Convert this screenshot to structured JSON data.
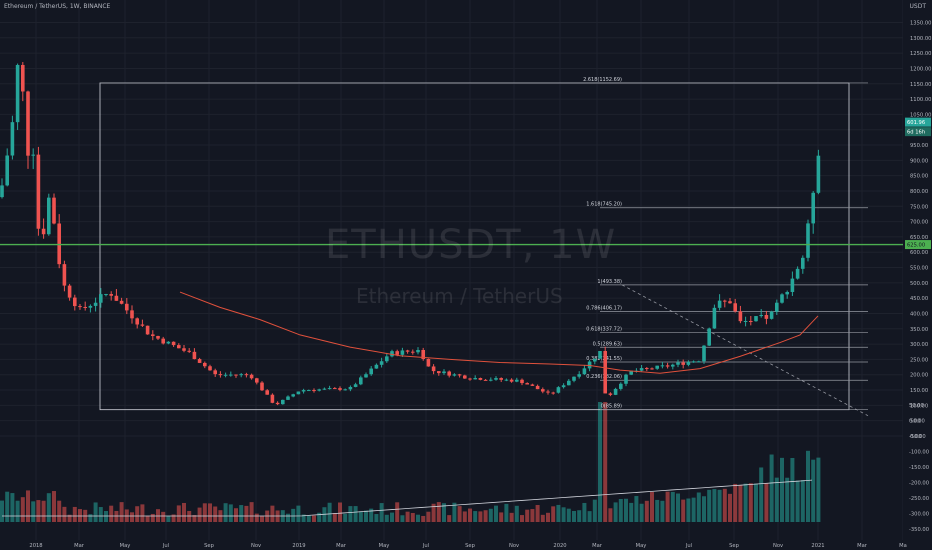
{
  "header": {
    "symbol_line": "Ethereum / TetherUS, 1W, BINANCE",
    "currency": "USDT"
  },
  "watermark": {
    "symbol": "ETHUSDT, 1W",
    "description": "Ethereum / TetherUS"
  },
  "colors": {
    "up": "#26a69a",
    "down": "#ef5350",
    "ma": "#e0513c",
    "level_line": "#4caf50",
    "fib": "#9598a1",
    "background": "#131722"
  },
  "chart_data": {
    "type": "candlestick",
    "price_axis": {
      "ticks": [
        1350,
        1300,
        1250,
        1200,
        1150,
        1100,
        1050,
        1000,
        950,
        900,
        850,
        800,
        750,
        700,
        650,
        600,
        550,
        500,
        450,
        400,
        350,
        300,
        250,
        200,
        150,
        100,
        50,
        0
      ],
      "ylim": [
        0,
        1400
      ]
    },
    "time_axis": {
      "labels": [
        "2018",
        "Mar",
        "May",
        "Jul",
        "Sep",
        "Nov",
        "2019",
        "Mar",
        "May",
        "Jul",
        "Sep",
        "Nov",
        "2020",
        "Mar",
        "May",
        "Jul",
        "Sep",
        "Nov",
        "2021",
        "Mar",
        "Ma"
      ]
    },
    "current_price": "601.96",
    "countdown": "6d 16h",
    "level_line_label": "625.00",
    "fib_levels": [
      {
        "label": "2.618(1152.69)",
        "value": 1152.69
      },
      {
        "label": "1.618(745.20)",
        "value": 745.2
      },
      {
        "label": "1(493.38)",
        "value": 493.38
      },
      {
        "label": "0.786(406.17)",
        "value": 406.17
      },
      {
        "label": "0.618(337.72)",
        "value": 337.72
      },
      {
        "label": "0.5(289.63)",
        "value": 289.63
      },
      {
        "label": "0.382(241.55)",
        "value": 241.55
      },
      {
        "label": "0.236(182.06)",
        "value": 182.06
      },
      {
        "label": "0(85.89)",
        "value": 85.89
      }
    ],
    "volume_axis": {
      "ticks": [
        "50.00",
        "0.00",
        "-50.00",
        "-100.00",
        "-150.00",
        "-200.00",
        "-250.00",
        "-300.00",
        "-350.00"
      ]
    }
  }
}
